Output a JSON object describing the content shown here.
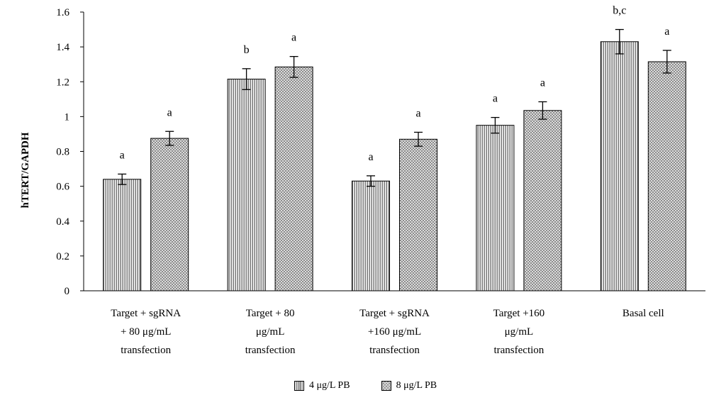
{
  "chart_data": {
    "type": "bar",
    "ylabel": "hTERT/GAPDH",
    "xlabel": "",
    "ylim": [
      0,
      1.6
    ],
    "yticks": [
      "0",
      "0.2",
      "0.4",
      "0.6",
      "0.8",
      "1",
      "1.2",
      "1.4",
      "1.6"
    ],
    "categories": [
      [
        "Target + sgRNA",
        "+ 80 μg/mL",
        "transfection"
      ],
      [
        "Target + 80",
        "μg/mL",
        "transfection"
      ],
      [
        "Target + sgRNA",
        "+160 μg/mL",
        "transfection"
      ],
      [
        "Target  +160",
        "μg/mL",
        "transfection"
      ],
      [
        "Basal cell"
      ]
    ],
    "series": [
      {
        "name": "4 μg/L PB",
        "pattern": "vertical-lines",
        "values": [
          0.64,
          1.215,
          0.63,
          0.95,
          1.43
        ],
        "errors": [
          0.03,
          0.06,
          0.03,
          0.045,
          0.07
        ],
        "labels": [
          "a",
          "b",
          "a",
          "a",
          "b,c"
        ]
      },
      {
        "name": "8 μg/L PB",
        "pattern": "checkered",
        "values": [
          0.875,
          1.285,
          0.87,
          1.035,
          1.315
        ],
        "errors": [
          0.04,
          0.06,
          0.04,
          0.05,
          0.065
        ],
        "labels": [
          "a",
          "a",
          "a",
          "a",
          "a"
        ]
      }
    ],
    "legend_position": "bottom",
    "grid": false,
    "colors": {
      "bar_stroke": "#000000",
      "pattern_dark": "#444444",
      "check_dark": "#8c8c8c",
      "check_light": "#dcdcdc"
    }
  }
}
